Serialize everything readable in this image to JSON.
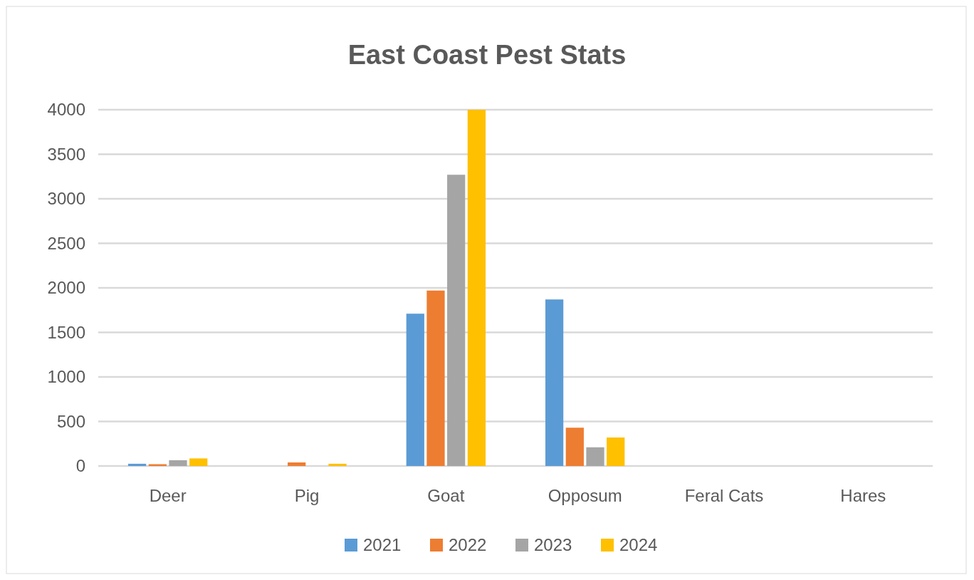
{
  "chart_data": {
    "type": "bar",
    "title": "East Coast Pest Stats",
    "categories": [
      "Deer",
      "Pig",
      "Goat",
      "Opposum",
      "Feral Cats",
      "Hares"
    ],
    "series": [
      {
        "name": "2021",
        "color": "#5b9bd5",
        "values": [
          25,
          0,
          1710,
          1870,
          0,
          0
        ]
      },
      {
        "name": "2022",
        "color": "#ed7d31",
        "values": [
          20,
          40,
          1970,
          430,
          0,
          0
        ]
      },
      {
        "name": "2023",
        "color": "#a5a5a5",
        "values": [
          65,
          0,
          3270,
          210,
          0,
          0
        ]
      },
      {
        "name": "2024",
        "color": "#ffc000",
        "values": [
          85,
          25,
          4000,
          320,
          0,
          0
        ]
      }
    ],
    "ylim": [
      0,
      4000
    ],
    "yticks": [
      0,
      500,
      1000,
      1500,
      2000,
      2500,
      3000,
      3500,
      4000
    ],
    "grid": "y",
    "legend": "bottom"
  }
}
